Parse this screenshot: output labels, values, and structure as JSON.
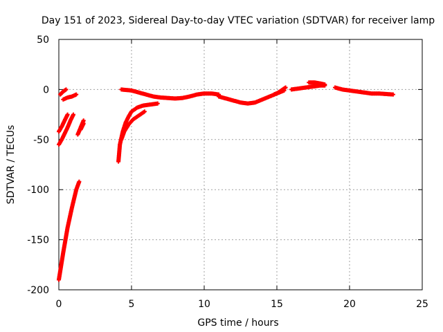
{
  "chart_data": {
    "type": "scatter",
    "title": "Day 151 of 2023, Sidereal Day-to-day VTEC variation (SDTVAR) for receiver lamp",
    "xlabel": "GPS time / hours",
    "ylabel": "SDTVAR / TECUs",
    "xlim": [
      0,
      25
    ],
    "ylim": [
      -200,
      50
    ],
    "x_ticks": [
      0,
      5,
      10,
      15,
      20,
      25
    ],
    "y_ticks": [
      -200,
      -150,
      -100,
      -50,
      0,
      50
    ],
    "x_tick_labels": [
      "0",
      "5",
      "10",
      "15",
      "20",
      "25"
    ],
    "y_tick_labels": [
      "-200",
      "-150",
      "-100",
      "-50",
      "0",
      "50"
    ],
    "grid": true,
    "marker": "plus",
    "series": [
      {
        "name": "SDTVAR",
        "color": "#ff0000",
        "segments": [
          {
            "x": [
              0.0,
              0.3,
              0.6,
              0.9,
              1.2,
              1.4
            ],
            "y": [
              -190,
              -163,
              -138,
              -118,
              -100,
              -92
            ]
          },
          {
            "x": [
              0.0,
              0.2,
              0.4,
              0.6,
              0.8,
              1.0
            ],
            "y": [
              -55,
              -50,
              -44,
              -38,
              -31,
              -25
            ]
          },
          {
            "x": [
              0.0,
              0.2,
              0.4,
              0.6
            ],
            "y": [
              -42,
              -37,
              -31,
              -25
            ]
          },
          {
            "x": [
              0.1,
              0.3,
              0.5
            ],
            "y": [
              -5,
              -2,
              0
            ]
          },
          {
            "x": [
              0.3,
              0.6,
              0.9,
              1.2
            ],
            "y": [
              -10,
              -8,
              -7,
              -5
            ]
          },
          {
            "x": [
              1.3,
              1.5,
              1.7
            ],
            "y": [
              -45,
              -38,
              -31
            ]
          },
          {
            "x": [
              1.5,
              1.7
            ],
            "y": [
              -40,
              -34
            ]
          },
          {
            "x": [
              4.1,
              4.2,
              4.4,
              4.6,
              4.8,
              5.0,
              5.4,
              5.8,
              6.3,
              6.8
            ],
            "y": [
              -72,
              -55,
              -42,
              -33,
              -27,
              -22,
              -18,
              -16,
              -15,
              -14
            ]
          },
          {
            "x": [
              4.3,
              4.5,
              4.8,
              5.1,
              5.5,
              5.9
            ],
            "y": [
              -50,
              -42,
              -35,
              -30,
              -26,
              -22
            ]
          },
          {
            "x": [
              4.3,
              5.0,
              5.5,
              6.0,
              6.5,
              7.0,
              7.5,
              8.0,
              8.5,
              9.0,
              9.5,
              10.0,
              10.5,
              11.0
            ],
            "y": [
              0,
              -1,
              -3,
              -5,
              -7,
              -8,
              -8.5,
              -9,
              -8.5,
              -7,
              -5,
              -4,
              -4,
              -5
            ]
          },
          {
            "x": [
              11.0,
              11.5,
              12.0,
              12.5,
              13.0,
              13.5,
              14.0,
              14.5,
              15.0,
              15.5
            ],
            "y": [
              -7,
              -9,
              -11,
              -13,
              -14,
              -13,
              -10,
              -7,
              -4,
              -1
            ]
          },
          {
            "x": [
              14.8,
              15.1,
              15.4,
              15.6
            ],
            "y": [
              -5,
              -3,
              0,
              2
            ]
          },
          {
            "x": [
              16.0,
              16.5,
              17.0,
              17.5,
              18.0,
              18.3
            ],
            "y": [
              0,
              1,
              2,
              3,
              4,
              4
            ]
          },
          {
            "x": [
              17.2,
              17.6,
              18.0,
              18.3
            ],
            "y": [
              7,
              7,
              6,
              5
            ]
          },
          {
            "x": [
              19.0,
              19.5,
              20.0,
              20.5,
              21.0,
              21.5,
              22.0,
              22.5,
              23.0
            ],
            "y": [
              2,
              0,
              -1,
              -2,
              -3,
              -4,
              -4,
              -4.5,
              -5
            ]
          }
        ]
      }
    ]
  }
}
